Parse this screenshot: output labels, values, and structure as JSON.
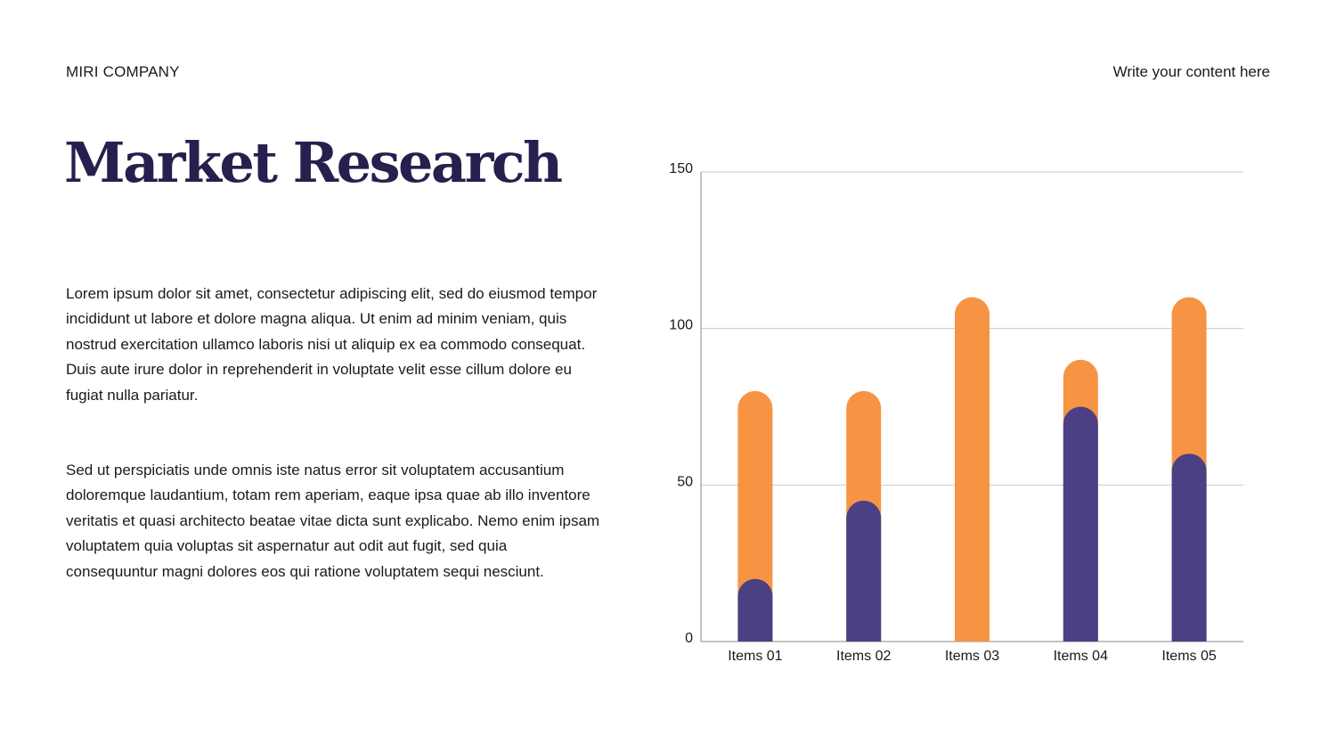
{
  "header": {
    "company": "MIRI COMPANY",
    "right_text": "Write your content here"
  },
  "main": {
    "title": "Market Research",
    "paragraph_1": "Lorem ipsum dolor sit amet, consectetur adipiscing elit, sed do eiusmod tempor incididunt ut labore et dolore magna aliqua. Ut enim ad minim veniam, quis nostrud exercitation ullamco laboris nisi ut aliquip ex ea commodo consequat. Duis aute irure dolor in reprehenderit in voluptate velit esse cillum dolore eu fugiat nulla pariatur.",
    "paragraph_2": "Sed ut perspiciatis unde omnis iste natus error sit voluptatem accusantium doloremque laudantium, totam rem aperiam, eaque ipsa quae ab illo inventore veritatis et quasi architecto beatae vitae dicta sunt explicabo. Nemo enim ipsam voluptatem quia voluptas sit aspernatur aut odit aut fugit, sed quia consequuntur magni dolores eos qui ratione voluptatem sequi nesciunt."
  },
  "chart_data": {
    "type": "bar",
    "categories": [
      "Items 01",
      "Items 02",
      "Items 03",
      "Items 04",
      "Items 05"
    ],
    "series": [
      {
        "values": [
          80,
          80,
          110,
          90,
          110
        ],
        "color": "#f79443"
      },
      {
        "values": [
          20,
          45,
          0,
          75,
          60
        ],
        "color": "#4b4083"
      }
    ],
    "ylim": [
      0,
      150
    ],
    "yticks": [
      0,
      50,
      100,
      150
    ],
    "grid": true,
    "title": "",
    "xlabel": "",
    "ylabel": ""
  }
}
